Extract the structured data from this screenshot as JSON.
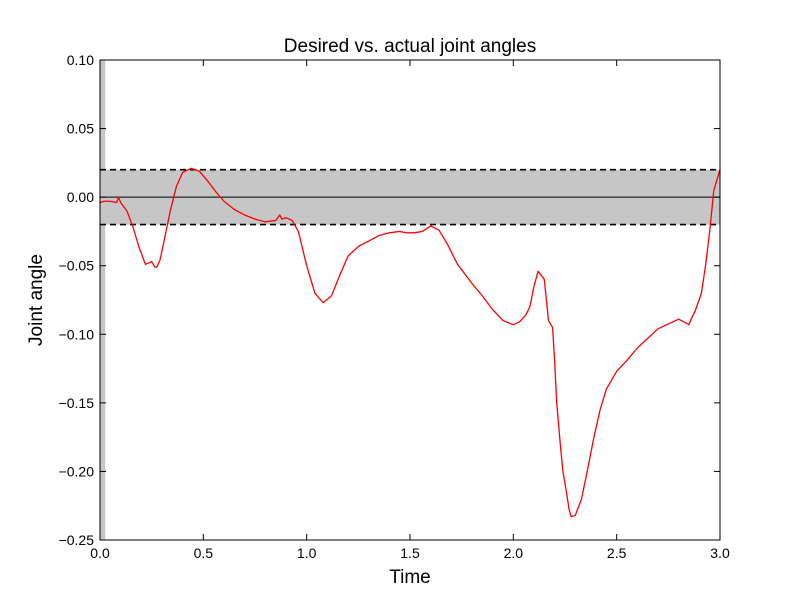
{
  "chart_data": {
    "type": "line",
    "title": "Desired vs. actual joint angles",
    "xlabel": "Time",
    "ylabel": "Joint angle",
    "xlim": [
      0.0,
      3.0
    ],
    "ylim": [
      -0.25,
      0.1
    ],
    "xticks": [
      0.0,
      0.5,
      1.0,
      1.5,
      2.0,
      2.5,
      3.0
    ],
    "xtick_labels": [
      "0.0",
      "0.5",
      "1.0",
      "1.5",
      "2.0",
      "2.5",
      "3.0"
    ],
    "yticks": [
      0.1,
      0.05,
      0.0,
      -0.05,
      -0.1,
      -0.15,
      -0.2,
      -0.25
    ],
    "ytick_labels": [
      "0.10",
      "0.05",
      "0.00",
      "−0.05",
      "−0.10",
      "−0.15",
      "−0.20",
      "−0.25"
    ],
    "grid": false,
    "band": {
      "lower": -0.02,
      "upper": 0.02,
      "fill_color": "#c6c6c6",
      "edge_style": "dashed"
    },
    "reference_line": {
      "y": 0.0,
      "color": "#000000"
    },
    "left_edge_strip": {
      "x_range": [
        0.0,
        0.025
      ],
      "color": "#c6c6c6"
    },
    "series": [
      {
        "color": "#ff0000",
        "x": [
          0.0,
          0.02,
          0.05,
          0.08,
          0.09,
          0.1,
          0.13,
          0.16,
          0.19,
          0.22,
          0.25,
          0.265,
          0.275,
          0.29,
          0.31,
          0.34,
          0.37,
          0.4,
          0.44,
          0.48,
          0.52,
          0.56,
          0.6,
          0.65,
          0.7,
          0.75,
          0.8,
          0.85,
          0.87,
          0.88,
          0.9,
          0.93,
          0.96,
          1.0,
          1.04,
          1.08,
          1.12,
          1.16,
          1.2,
          1.25,
          1.3,
          1.35,
          1.4,
          1.45,
          1.48,
          1.52,
          1.56,
          1.6,
          1.64,
          1.68,
          1.73,
          1.8,
          1.85,
          1.9,
          1.95,
          2.0,
          2.03,
          2.06,
          2.08,
          2.1,
          2.12,
          2.15,
          2.17,
          2.19,
          2.2,
          2.21,
          2.23,
          2.24,
          2.26,
          2.27,
          2.28,
          2.3,
          2.33,
          2.36,
          2.39,
          2.42,
          2.45,
          2.5,
          2.55,
          2.6,
          2.7,
          2.8,
          2.85,
          2.86,
          2.88,
          2.91,
          2.93,
          2.95,
          2.97,
          2.99,
          3.0
        ],
        "y": [
          -0.004,
          -0.003,
          -0.003,
          -0.004,
          0.0,
          -0.004,
          -0.01,
          -0.022,
          -0.037,
          -0.049,
          -0.047,
          -0.051,
          -0.051,
          -0.046,
          -0.032,
          -0.01,
          0.008,
          0.018,
          0.021,
          0.019,
          0.012,
          0.004,
          -0.003,
          -0.009,
          -0.013,
          -0.016,
          -0.018,
          -0.017,
          -0.013,
          -0.016,
          -0.015,
          -0.017,
          -0.025,
          -0.05,
          -0.07,
          -0.077,
          -0.072,
          -0.057,
          -0.043,
          -0.036,
          -0.032,
          -0.028,
          -0.026,
          -0.025,
          -0.026,
          -0.026,
          -0.025,
          -0.021,
          -0.024,
          -0.034,
          -0.049,
          -0.063,
          -0.072,
          -0.082,
          -0.09,
          -0.093,
          -0.091,
          -0.086,
          -0.08,
          -0.065,
          -0.054,
          -0.06,
          -0.09,
          -0.095,
          -0.12,
          -0.15,
          -0.185,
          -0.2,
          -0.218,
          -0.228,
          -0.233,
          -0.232,
          -0.22,
          -0.198,
          -0.175,
          -0.155,
          -0.14,
          -0.127,
          -0.119,
          -0.11,
          -0.096,
          -0.089,
          -0.093,
          -0.089,
          -0.083,
          -0.07,
          -0.05,
          -0.025,
          0.005,
          0.015,
          0.02
        ]
      }
    ]
  }
}
